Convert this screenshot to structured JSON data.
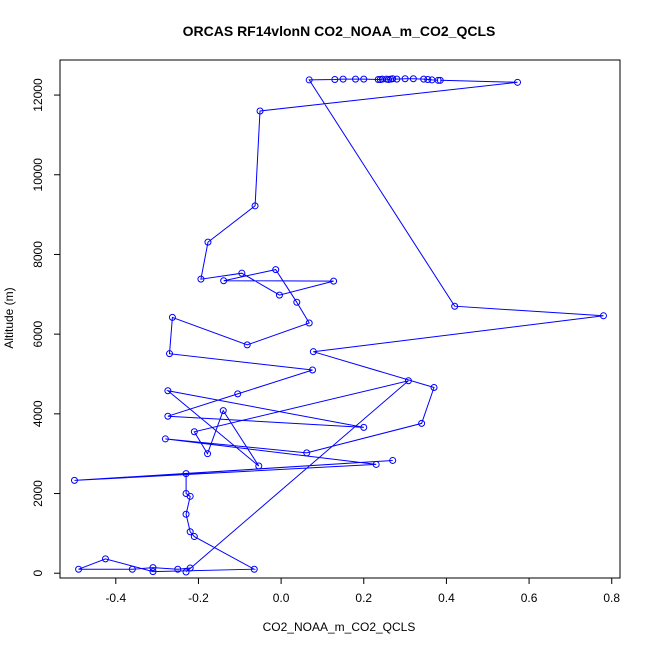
{
  "chart_data": {
    "type": "line",
    "title": "ORCAS RF14vlonN CO2_NOAA_m_CO2_QCLS",
    "xlabel": "CO2_NOAA_m_CO2_QCLS",
    "ylabel": "Altitude (m)",
    "xlim": [
      -0.535,
      0.82
    ],
    "ylim": [
      -120,
      12880
    ],
    "xticks": [
      -0.4,
      -0.2,
      0.0,
      0.2,
      0.4,
      0.6,
      0.8
    ],
    "xtick_labels": [
      "-0.4",
      "-0.2",
      "0.0",
      "0.2",
      "0.4",
      "0.6",
      "0.8"
    ],
    "yticks": [
      0,
      2000,
      4000,
      6000,
      8000,
      10000,
      12000
    ],
    "ytick_labels": [
      "0",
      "2000",
      "4000",
      "6000",
      "8000",
      "10000",
      "12000"
    ],
    "grid": false,
    "legend": "none",
    "series": [
      {
        "color": "#0000ff",
        "marker": "open-circle",
        "x": [
          0.38,
          0.365,
          0.355,
          0.345,
          0.32,
          0.3,
          0.28,
          0.27,
          0.265,
          0.26,
          0.255,
          0.245,
          0.24,
          0.235,
          0.2,
          0.18,
          0.15,
          0.13,
          0.068,
          0.42,
          0.78,
          0.078,
          0.37,
          0.34,
          0.062,
          -0.28,
          0.23,
          -0.5,
          0.27,
          -0.23,
          -0.23,
          -0.22,
          -0.23,
          -0.22,
          -0.21,
          -0.065,
          -0.31,
          -0.425,
          -0.49,
          -0.36,
          -0.31,
          -0.25,
          -0.22,
          -0.23,
          0.308,
          -0.21,
          -0.178,
          -0.14,
          -0.054,
          -0.274,
          0.2,
          -0.274,
          -0.105,
          0.076,
          -0.27,
          -0.263,
          -0.082,
          0.068,
          0.038,
          -0.013,
          -0.139,
          0.127,
          -0.004,
          -0.095,
          -0.194,
          -0.177,
          -0.063,
          -0.051,
          0.572,
          0.385
        ],
        "y": [
          12370,
          12380,
          12390,
          12400,
          12410,
          12410,
          12400,
          12410,
          12400,
          12390,
          12400,
          12400,
          12390,
          12390,
          12400,
          12400,
          12400,
          12390,
          12380,
          6700,
          6460,
          5560,
          4660,
          3760,
          3020,
          3370,
          2730,
          2330,
          2830,
          2500,
          2000,
          1930,
          1480,
          1040,
          920,
          100,
          40,
          360,
          100,
          100,
          140,
          100,
          130,
          30,
          4830,
          3550,
          3000,
          4080,
          2690,
          4580,
          3660,
          3940,
          4500,
          5100,
          5510,
          6420,
          5730,
          6280,
          6800,
          7620,
          7340,
          7330,
          6980,
          7530,
          7380,
          8310,
          9220,
          11600,
          12320,
          12370
        ]
      }
    ]
  }
}
